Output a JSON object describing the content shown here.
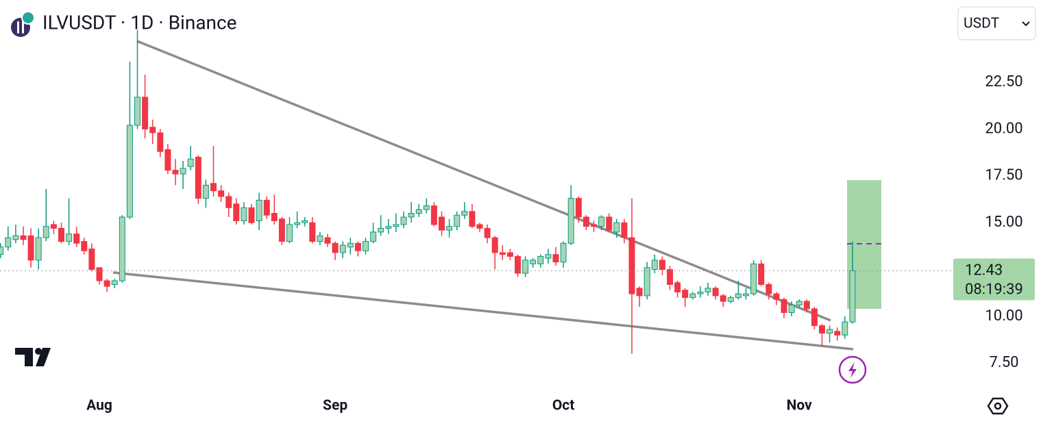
{
  "chart_data": {
    "type": "candlestick",
    "title": "ILVUSDT · 1D · Binance",
    "currency": "USDT",
    "countdown": "08:19:39",
    "up_color": "#089981",
    "up_fill": "#a5d6b4",
    "down_color": "#f23645",
    "categories": [
      null,
      null,
      null,
      null,
      null,
      null,
      null,
      null,
      null,
      null,
      null,
      null,
      null,
      "Aug",
      null,
      null,
      null,
      null,
      null,
      null,
      null,
      null,
      null,
      null,
      null,
      null,
      null,
      null,
      null,
      null,
      null,
      null,
      null,
      null,
      null,
      null,
      null,
      null,
      null,
      null,
      null,
      null,
      null,
      null,
      "Sep",
      null,
      null,
      null,
      null,
      null,
      null,
      null,
      null,
      null,
      null,
      null,
      null,
      null,
      null,
      null,
      null,
      null,
      null,
      null,
      null,
      null,
      null,
      null,
      null,
      null,
      null,
      null,
      null,
      null,
      "Oct",
      null,
      null,
      null,
      null,
      null,
      null,
      null,
      null,
      null,
      null,
      null,
      null,
      null,
      null,
      null,
      null,
      null,
      null,
      null,
      null,
      null,
      null,
      null,
      null,
      null,
      null,
      null,
      null,
      null,
      null,
      "Nov",
      null,
      null,
      null,
      null,
      null,
      null,
      null
    ],
    "open": [
      13.3,
      13.7,
      14.1,
      14.3,
      14.3,
      13.0,
      14.2,
      14.9,
      14.7,
      14.0,
      14.4,
      14.0,
      13.6,
      12.6,
      11.9,
      11.7,
      11.9,
      15.3,
      20.2,
      21.7,
      20.1,
      19.8,
      18.9,
      17.8,
      17.6,
      18.0,
      18.5,
      16.3,
      17.1,
      16.7,
      16.4,
      16.0,
      15.1,
      15.8,
      15.1,
      16.2,
      15.5,
      15.2,
      14.0,
      14.9,
      15.0,
      15.0,
      14.0,
      14.2,
      13.9,
      13.4,
      13.7,
      13.9,
      13.5,
      14.0,
      14.5,
      14.7,
      14.8,
      14.9,
      15.3,
      15.5,
      15.7,
      15.9,
      15.3,
      14.6,
      14.8,
      15.4,
      15.6,
      14.9,
      14.7,
      14.2,
      13.4,
      13.4,
      13.2,
      12.3,
      12.8,
      12.8,
      13.1,
      13.3,
      12.9,
      13.9,
      16.3,
      15.3,
      14.9,
      14.8,
      15.3,
      14.5,
      15.0,
      14.2,
      11.5,
      11.1,
      12.5,
      13.0,
      12.5,
      11.8,
      11.4,
      11.0,
      11.2,
      11.3,
      11.5,
      11.1,
      10.8,
      11.0,
      11.1,
      11.2,
      12.8,
      11.7,
      11.2,
      10.9,
      10.2,
      10.6,
      10.8,
      10.4,
      9.5,
      9.1,
      9.2,
      9.0,
      9.7
    ],
    "high": [
      13.9,
      14.8,
      14.9,
      14.8,
      14.7,
      14.7,
      16.8,
      15.1,
      15.0,
      16.3,
      14.8,
      14.2,
      13.9,
      12.6,
      12.0,
      12.0,
      15.4,
      23.6,
      25.3,
      22.9,
      20.5,
      20.0,
      19.2,
      18.4,
      18.3,
      19.1,
      18.6,
      17.3,
      19.1,
      17.0,
      16.6,
      16.3,
      16.1,
      16.0,
      16.6,
      16.4,
      16.5,
      15.3,
      15.3,
      15.6,
      15.3,
      15.3,
      14.5,
      14.4,
      14.0,
      14.0,
      14.2,
      14.0,
      14.2,
      15.0,
      15.4,
      15.2,
      15.5,
      15.6,
      16.1,
      16.0,
      16.3,
      16.1,
      15.6,
      15.2,
      15.6,
      16.1,
      16.0,
      15.0,
      14.9,
      14.3,
      13.8,
      13.6,
      13.3,
      13.2,
      13.1,
      13.3,
      13.6,
      13.7,
      14.0,
      17.0,
      16.4,
      15.4,
      15.1,
      15.4,
      15.5,
      15.2,
      15.2,
      16.3,
      11.6,
      12.9,
      13.3,
      13.2,
      12.7,
      11.9,
      11.5,
      11.3,
      11.6,
      11.8,
      11.6,
      11.2,
      11.1,
      11.9,
      11.5,
      13.0,
      13.0,
      11.8,
      11.3,
      11.0,
      10.8,
      10.9,
      10.9,
      10.5,
      9.6,
      9.5,
      9.4,
      10.0,
      14.0
    ],
    "low": [
      13.1,
      13.5,
      13.9,
      13.8,
      12.6,
      12.5,
      14.0,
      14.4,
      13.9,
      13.8,
      13.7,
      13.3,
      12.4,
      11.7,
      11.3,
      11.5,
      11.8,
      15.2,
      20.0,
      19.5,
      19.2,
      18.5,
      17.6,
      17.0,
      16.8,
      17.8,
      16.0,
      15.8,
      16.4,
      16.1,
      15.3,
      14.9,
      14.9,
      14.9,
      14.6,
      15.2,
      14.9,
      13.8,
      13.9,
      14.7,
      14.8,
      13.9,
      13.8,
      13.7,
      13.0,
      13.1,
      13.3,
      13.2,
      13.3,
      13.9,
      14.3,
      14.4,
      14.5,
      14.7,
      15.0,
      15.3,
      15.5,
      14.8,
      14.3,
      14.2,
      14.6,
      15.2,
      14.7,
      14.5,
      13.9,
      12.5,
      13.0,
      13.0,
      12.1,
      12.1,
      12.6,
      12.6,
      12.8,
      12.7,
      12.6,
      13.8,
      15.0,
      14.6,
      14.5,
      14.6,
      14.5,
      14.2,
      13.9,
      8.0,
      10.5,
      10.9,
      12.3,
      12.2,
      11.4,
      11.0,
      10.5,
      10.9,
      11.0,
      11.1,
      10.9,
      10.5,
      10.7,
      10.9,
      10.9,
      11.1,
      11.6,
      10.9,
      10.6,
      9.9,
      10.0,
      10.5,
      10.2,
      9.3,
      8.4,
      8.6,
      8.7,
      8.8,
      9.6
    ],
    "close": [
      13.7,
      14.2,
      14.3,
      14.1,
      13.0,
      14.2,
      14.8,
      14.7,
      14.0,
      14.4,
      13.9,
      13.5,
      12.5,
      11.9,
      11.6,
      11.9,
      15.3,
      20.2,
      21.7,
      20.0,
      19.8,
      18.8,
      17.8,
      17.6,
      17.9,
      18.4,
      16.3,
      17.0,
      16.7,
      16.4,
      15.8,
      15.1,
      15.8,
      15.0,
      16.2,
      15.4,
      15.1,
      14.0,
      14.9,
      15.0,
      15.1,
      14.0,
      14.3,
      13.9,
      13.4,
      13.8,
      13.9,
      13.5,
      14.0,
      14.5,
      14.7,
      14.8,
      14.9,
      15.3,
      15.5,
      15.7,
      15.9,
      14.9,
      14.6,
      14.8,
      15.4,
      15.6,
      14.8,
      14.7,
      14.2,
      13.4,
      13.3,
      13.2,
      12.3,
      13.0,
      13.0,
      13.2,
      13.3,
      12.9,
      13.9,
      16.3,
      15.3,
      14.8,
      14.8,
      15.3,
      14.6,
      15.0,
      14.2,
      11.2,
      11.1,
      12.6,
      13.0,
      12.5,
      11.7,
      11.3,
      11.0,
      11.2,
      11.3,
      11.5,
      11.1,
      10.8,
      11.0,
      11.2,
      11.2,
      12.8,
      11.7,
      11.2,
      10.9,
      10.2,
      10.6,
      10.8,
      10.4,
      9.5,
      9.1,
      9.3,
      9.0,
      9.7,
      12.43
    ],
    "ylim": [
      6.05,
      26.89
    ],
    "yticks": [
      {
        "value": 7.5,
        "label": "7.50"
      },
      {
        "value": 10,
        "label": "10.00"
      },
      {
        "value": 15,
        "label": "15.00"
      },
      {
        "value": 17.5,
        "label": "17.50"
      },
      {
        "value": 20,
        "label": "20.00"
      },
      {
        "value": 22.5,
        "label": "22.50"
      }
    ]
  }
}
